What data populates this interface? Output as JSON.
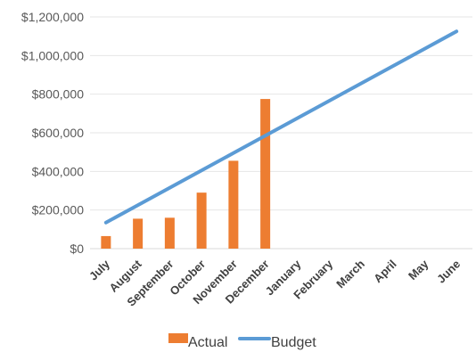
{
  "chart_data": {
    "type": "bar",
    "title": "",
    "xlabel": "",
    "ylabel": "",
    "categories": [
      "July",
      "August",
      "September",
      "October",
      "November",
      "December",
      "January",
      "February",
      "March",
      "April",
      "May",
      "June"
    ],
    "series": [
      {
        "name": "Actual",
        "type": "bar",
        "color": "#ED7D31",
        "values": [
          65000,
          155000,
          160000,
          290000,
          455000,
          775000,
          null,
          null,
          null,
          null,
          null,
          null
        ]
      },
      {
        "name": "Budget",
        "type": "line",
        "color": "#5B9BD5",
        "values": [
          135000,
          225000,
          315000,
          405000,
          495000,
          585000,
          675000,
          765000,
          855000,
          945000,
          1035000,
          1125000
        ]
      }
    ],
    "ylim": [
      0,
      1200000
    ],
    "yticks": [
      0,
      200000,
      400000,
      600000,
      800000,
      1000000,
      1200000
    ],
    "ytick_labels": [
      "$0",
      "$200,000",
      "$400,000",
      "$600,000",
      "$800,000",
      "$1,000,000",
      "$1,200,000"
    ],
    "grid": true,
    "legend_position": "bottom"
  }
}
